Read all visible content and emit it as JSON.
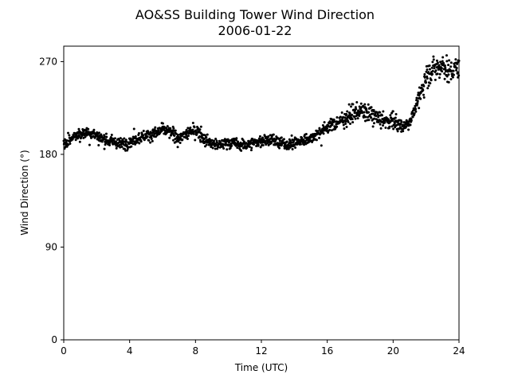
{
  "chart_data": {
    "type": "scatter",
    "title": "AO&SS Building Tower Wind Direction",
    "subtitle": "2006-01-22",
    "xlabel": "Time (UTC)",
    "ylabel": "Wind Direction (°)",
    "xlim": [
      0,
      24
    ],
    "ylim": [
      0,
      285
    ],
    "xticks": [
      0,
      4,
      8,
      12,
      16,
      20,
      24
    ],
    "yticks": [
      0,
      90,
      180,
      270
    ],
    "grid": false,
    "legend": "none",
    "marker_color": "#000000",
    "series": [
      {
        "trend_x": [
          0,
          0.5,
          1,
          1.5,
          2,
          2.5,
          3,
          3.5,
          4,
          4.5,
          5,
          5.5,
          6,
          6.5,
          7,
          7.5,
          8,
          8.5,
          9,
          9.5,
          10,
          10.5,
          11,
          11.5,
          12,
          12.5,
          13,
          13.5,
          14,
          14.5,
          15,
          15.5,
          16,
          16.5,
          17,
          17.5,
          18,
          18.5,
          19,
          19.5,
          20,
          20.5,
          21,
          21.5,
          22,
          22.5,
          23,
          23.5,
          24
        ],
        "trend_y": [
          190,
          195,
          200,
          202,
          198,
          194,
          192,
          190,
          192,
          196,
          198,
          200,
          204,
          201,
          196,
          200,
          204,
          195,
          190,
          189,
          192,
          190,
          189,
          191,
          193,
          195,
          191,
          190,
          191,
          193,
          196,
          201,
          207,
          210,
          214,
          219,
          222,
          220,
          216,
          212,
          214,
          206,
          212,
          230,
          256,
          263,
          268,
          258,
          268
        ],
        "spread": 4
      }
    ]
  }
}
